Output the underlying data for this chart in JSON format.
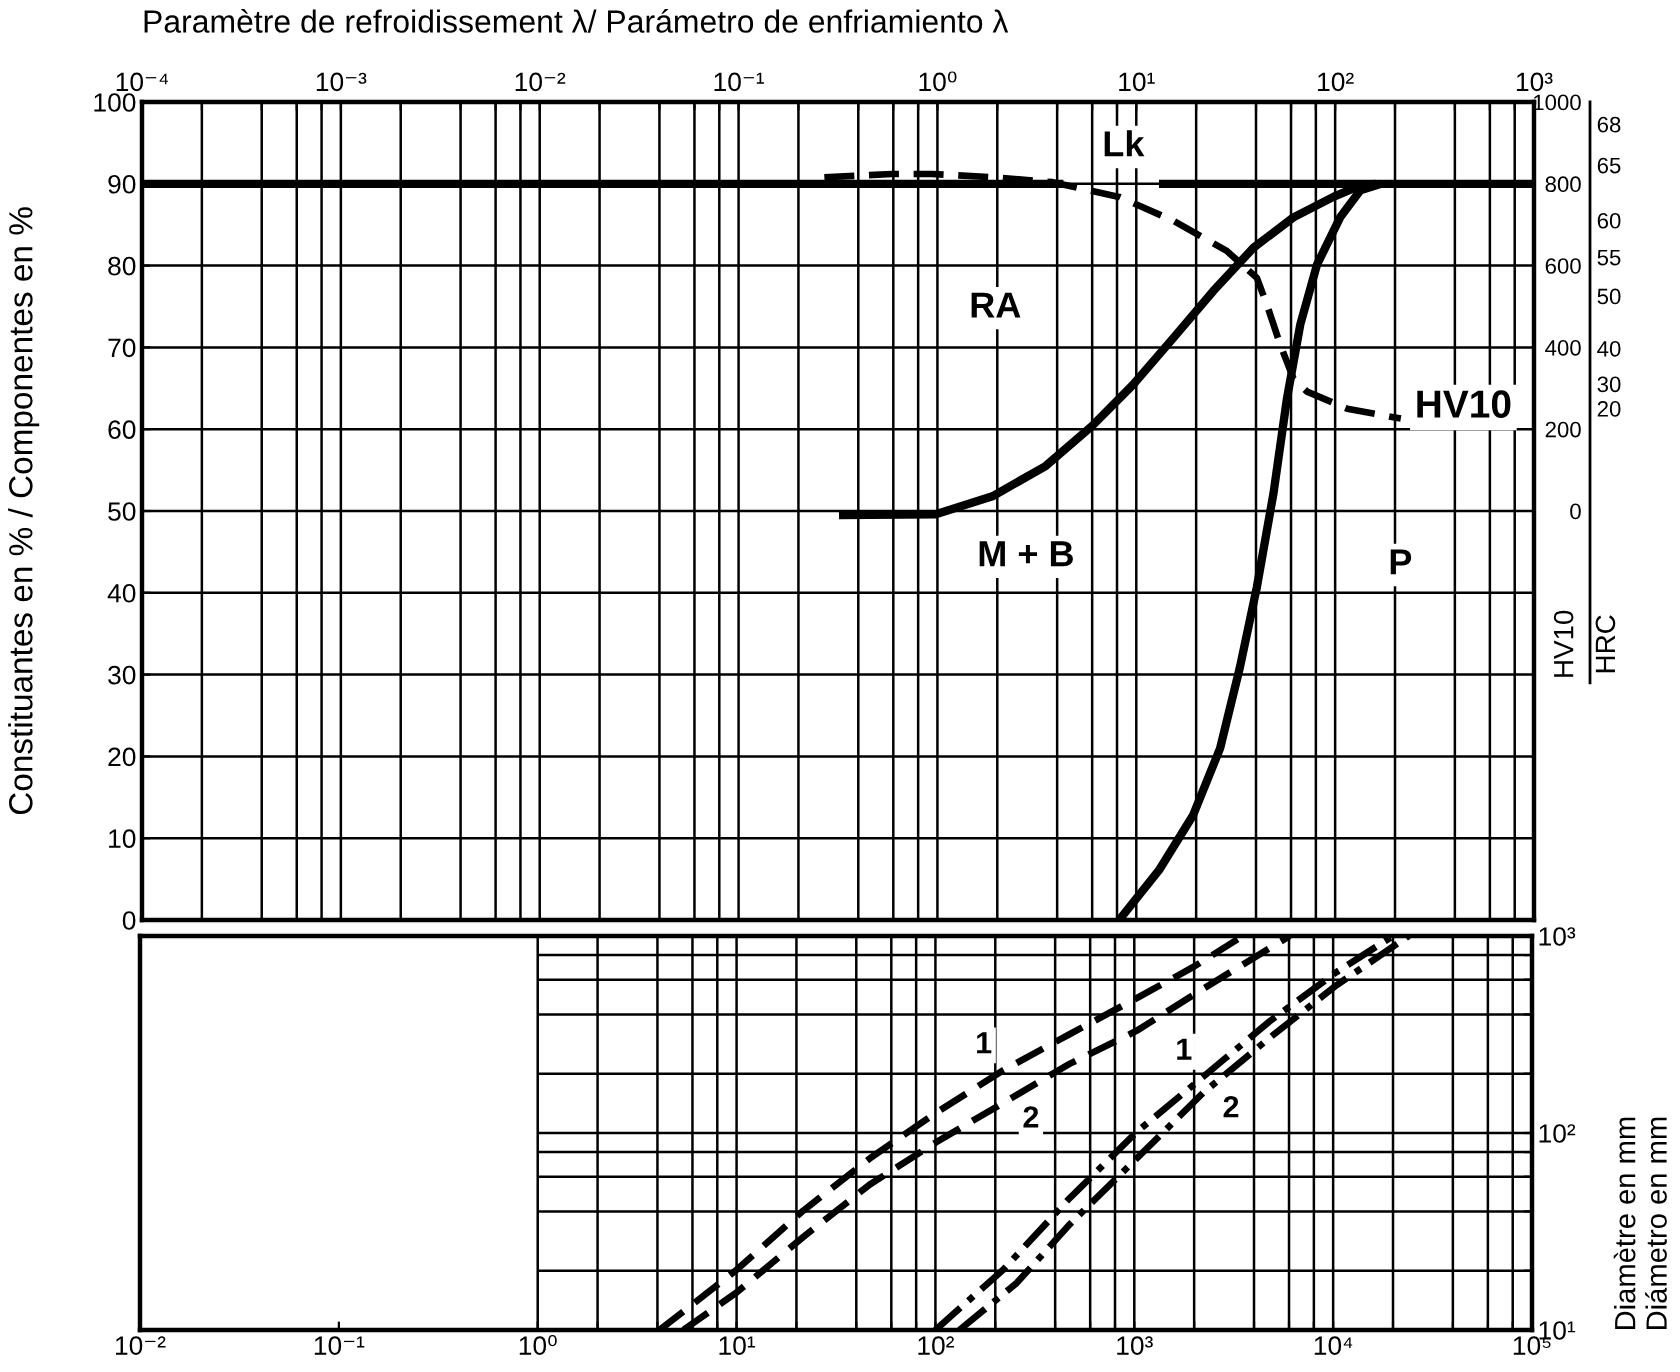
{
  "chart_data": [
    {
      "type": "line",
      "xlabel": "Paramètre de refroidissement λ/ Parámetro de enfriamiento λ",
      "ylabel": "Constituantes en % / Componentes en %",
      "y2label": "HV10",
      "log": "x",
      "grid": true,
      "xlim": [
        0.0001,
        1000
      ],
      "xticks": [
        {
          "value": 0.0001,
          "label": "10⁻⁴"
        },
        {
          "value": 0.0002,
          "label": null
        },
        {
          "value": 0.0004,
          "label": null
        },
        {
          "value": 0.0006,
          "label": null
        },
        {
          "value": 0.0008,
          "label": null
        },
        {
          "value": 0.001,
          "label": "10⁻³"
        },
        {
          "value": 0.002,
          "label": null
        },
        {
          "value": 0.004,
          "label": null
        },
        {
          "value": 0.006,
          "label": null
        },
        {
          "value": 0.008,
          "label": null
        },
        {
          "value": 0.01,
          "label": "10⁻²"
        },
        {
          "value": 0.02,
          "label": null
        },
        {
          "value": 0.04,
          "label": null
        },
        {
          "value": 0.06,
          "label": null
        },
        {
          "value": 0.08,
          "label": null
        },
        {
          "value": 0.1,
          "label": "10⁻¹"
        },
        {
          "value": 0.2,
          "label": null
        },
        {
          "value": 0.4,
          "label": null
        },
        {
          "value": 0.6,
          "label": null
        },
        {
          "value": 0.8,
          "label": null
        },
        {
          "value": 1,
          "label": "10⁰"
        },
        {
          "value": 2,
          "label": null
        },
        {
          "value": 4,
          "label": null
        },
        {
          "value": 6,
          "label": null
        },
        {
          "value": 8,
          "label": null
        },
        {
          "value": 10,
          "label": "10¹"
        },
        {
          "value": 20,
          "label": null
        },
        {
          "value": 40,
          "label": null
        },
        {
          "value": 60,
          "label": null
        },
        {
          "value": 80,
          "label": null
        },
        {
          "value": 100,
          "label": "10²"
        },
        {
          "value": 200,
          "label": null
        },
        {
          "value": 400,
          "label": null
        },
        {
          "value": 600,
          "label": null
        },
        {
          "value": 800,
          "label": null
        },
        {
          "value": 1000,
          "label": "10³"
        }
      ],
      "ylim": [
        0,
        100
      ],
      "yticks": [
        0,
        10,
        20,
        30,
        40,
        50,
        60,
        70,
        80,
        90,
        100
      ],
      "y2lim": [
        -1000,
        1000
      ],
      "y2ticks": [
        0,
        200,
        400,
        600,
        800,
        1000
      ],
      "series": [
        {
          "color": "#000000",
          "x": [
            0.0001,
            4.3,
            8.6,
            13,
            1000
          ],
          "values": [
            90,
            90,
            null,
            90,
            90
          ]
        },
        {
          "color": "#000000",
          "x": [
            0.32,
            0.98,
            1.89,
            3.5,
            6.0,
            9.6,
            15.3,
            24.4,
            38.9,
            61.7,
            98,
            134,
            160
          ],
          "values": [
            49.5,
            49.6,
            51.8,
            55.5,
            60.4,
            65.4,
            71.1,
            76.9,
            82.2,
            85.9,
            88.4,
            89.8,
            90
          ]
        },
        {
          "color": "#000000",
          "x": [
            8.2,
            13.1,
            19.3,
            26.4,
            33.2,
            40.4,
            49,
            57.2,
            66.8,
            81,
            106,
            134,
            170
          ],
          "values": [
            0,
            6.2,
            12.8,
            21,
            30.9,
            40.7,
            52.2,
            63.7,
            72.8,
            80.1,
            85.9,
            89.2,
            90
          ]
        },
        {
          "name": "HV10",
          "axis": "y2",
          "line_style": "dashed",
          "color": "#000000",
          "x": [
            0.27,
            0.59,
            0.94,
            1.89,
            3.79,
            8.2,
            15.3,
            28.5,
            40.4,
            45.4,
            53,
            61.7,
            72.2,
            115,
            214
          ],
          "values": [
            816,
            824,
            824,
            816,
            804,
            768,
            710,
            636,
            570,
            504,
            406,
            324,
            292,
            250,
            226
          ]
        }
      ],
      "annotations": [
        "Lk",
        "RA",
        "M + B",
        "P",
        "68",
        "65",
        "60",
        "55",
        "50",
        "40",
        "30",
        "20",
        "HRC"
      ]
    },
    {
      "type": "line",
      "ylabel": "Diamètre en mm\nDiámetro en mm",
      "log": "xy",
      "grid": true,
      "xlim": [
        0.01,
        100000
      ],
      "xticks": [
        {
          "value": 0.01,
          "label": "10⁻²"
        },
        {
          "value": 0.1,
          "label": "10⁻¹"
        },
        {
          "value": 1,
          "label": "10⁰"
        },
        {
          "value": 2,
          "label": null
        },
        {
          "value": 4,
          "label": null
        },
        {
          "value": 6,
          "label": null
        },
        {
          "value": 8,
          "label": null
        },
        {
          "value": 10,
          "label": "10¹"
        },
        {
          "value": 20,
          "label": null
        },
        {
          "value": 40,
          "label": null
        },
        {
          "value": 60,
          "label": null
        },
        {
          "value": 80,
          "label": null
        },
        {
          "value": 100,
          "label": "10²"
        },
        {
          "value": 200,
          "label": null
        },
        {
          "value": 400,
          "label": null
        },
        {
          "value": 600,
          "label": null
        },
        {
          "value": 800,
          "label": null
        },
        {
          "value": 1000,
          "label": "10³"
        },
        {
          "value": 2000,
          "label": null
        },
        {
          "value": 4000,
          "label": null
        },
        {
          "value": 6000,
          "label": null
        },
        {
          "value": 8000,
          "label": null
        },
        {
          "value": 10000,
          "label": "10⁴"
        },
        {
          "value": 20000,
          "label": null
        },
        {
          "value": 40000,
          "label": null
        },
        {
          "value": 60000,
          "label": null
        },
        {
          "value": 80000,
          "label": null
        },
        {
          "value": 100000,
          "label": "10⁵"
        }
      ],
      "ylim": [
        10,
        1000
      ],
      "yticks": [
        {
          "value": 10,
          "label": "10¹"
        },
        {
          "value": 20,
          "label": null
        },
        {
          "value": 40,
          "label": null
        },
        {
          "value": 60,
          "label": null
        },
        {
          "value": 80,
          "label": null
        },
        {
          "value": 100,
          "label": "10²"
        },
        {
          "value": 200,
          "label": null
        },
        {
          "value": 400,
          "label": null
        },
        {
          "value": 600,
          "label": null
        },
        {
          "value": 800,
          "label": null
        },
        {
          "value": 1000,
          "label": "10³"
        }
      ],
      "series": [
        {
          "name": "1",
          "line_style": "dashed",
          "color": "#000000",
          "x": [
            4.1,
            10,
            21.6,
            46.7,
            101,
            219,
            475,
            1026,
            2000,
            3515
          ],
          "values": [
            10,
            20.2,
            40.3,
            74.2,
            127,
            208,
            318,
            483,
            700,
            1000
          ]
        },
        {
          "name": "2",
          "line_style": "dashed",
          "color": "#000000",
          "x": [
            5.4,
            10,
            21.6,
            46.7,
            101,
            219,
            475,
            1026,
            2222,
            6050
          ],
          "values": [
            10,
            15.5,
            29.6,
            54.7,
            89.8,
            142,
            225,
            330,
            540,
            1000
          ]
        },
        {
          "name": "1",
          "line_style": "dashdot",
          "color": "#000000",
          "x": [
            100,
            219,
            475,
            1026,
            2222,
            4808,
            10400,
            20000
          ],
          "values": [
            10,
            20.2,
            46.9,
            101,
            193,
            370,
            656,
            1000
          ]
        },
        {
          "name": "2",
          "line_style": "dashdot",
          "color": "#000000",
          "x": [
            132,
            256,
            475,
            1026,
            2222,
            4808,
            10400,
            24000
          ],
          "values": [
            10,
            17.3,
            34.5,
            74.2,
            160,
            305,
            563,
            1000
          ]
        }
      ]
    }
  ]
}
